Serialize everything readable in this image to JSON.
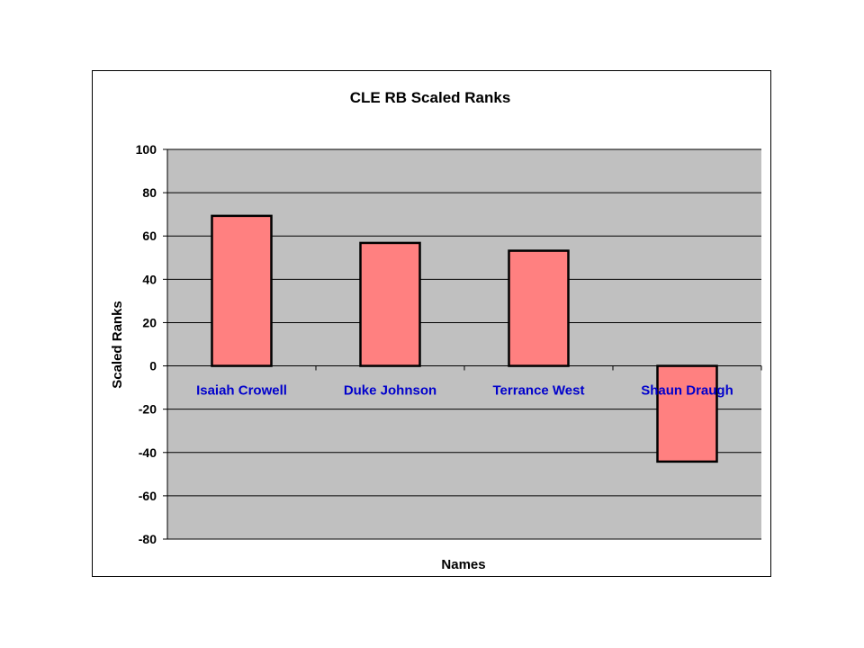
{
  "chart_data": {
    "type": "bar",
    "title": "CLE RB Scaled Ranks",
    "xlabel": "Names",
    "ylabel": "Scaled Ranks",
    "categories": [
      "Isaiah Crowell",
      "Duke Johnson",
      "Terrance West",
      "Shaun Draugh"
    ],
    "values": [
      69.3,
      56.8,
      53.2,
      -44.2
    ],
    "ylim": [
      -80,
      100
    ],
    "yticks": [
      100,
      80,
      60,
      40,
      20,
      0,
      -20,
      -40,
      -60,
      -80
    ],
    "grid": true,
    "legend": "none",
    "colors": {
      "bar": "#FF8080",
      "plot_bg": "#C0C0C0",
      "category_label": "#0000CC"
    }
  }
}
